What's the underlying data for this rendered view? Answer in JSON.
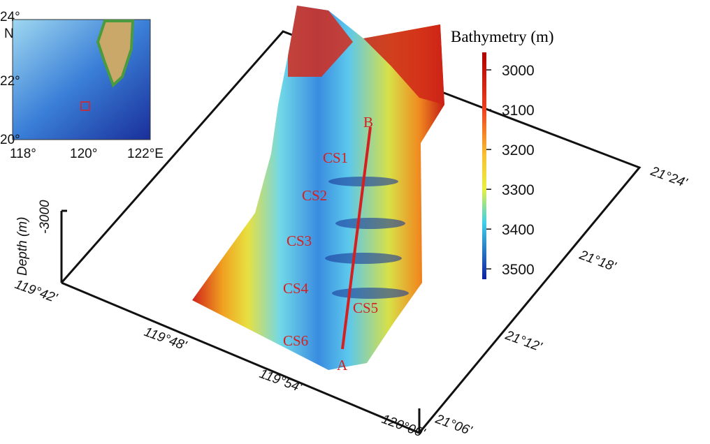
{
  "inset": {
    "lat_labels": [
      "24°",
      "22°",
      "20°"
    ],
    "north": "N",
    "lon_labels": [
      "118°",
      "120°",
      "122°E"
    ]
  },
  "box": {
    "depth_label": "Depth (m)",
    "depth_tick": "-3000",
    "lon_labels": [
      "119°42'",
      "119°48'",
      "119°54'",
      "120°00'"
    ],
    "lat_labels": [
      "21°24'",
      "21°18'",
      "21°12'",
      "21°06'"
    ]
  },
  "annotations": [
    "CS1",
    "CS2",
    "CS3",
    "CS4",
    "CS5",
    "CS6"
  ],
  "profile": {
    "start": "A",
    "end": "B"
  },
  "colorbar": {
    "title": "Bathymetry (m)",
    "range": [
      2956,
      3526
    ],
    "ticks": [
      3000,
      3100,
      3200,
      3300,
      3400,
      3500
    ]
  }
}
